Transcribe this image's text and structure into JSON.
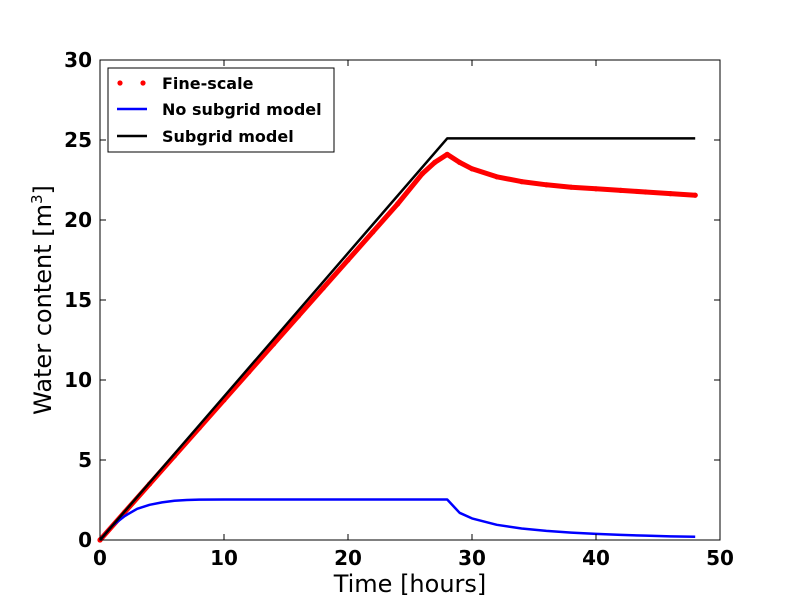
{
  "chart_data": {
    "type": "line",
    "xlabel": "Time [hours]",
    "ylabel_main": "Water content [m",
    "ylabel_sup": "3",
    "ylabel_close": "]",
    "xlim": [
      0,
      50
    ],
    "ylim": [
      0,
      30
    ],
    "xticks": [
      0,
      10,
      20,
      30,
      40,
      50
    ],
    "yticks": [
      0,
      5,
      10,
      15,
      20,
      25,
      30
    ],
    "xtick_labels": [
      "0",
      "10",
      "20",
      "30",
      "40",
      "50"
    ],
    "ytick_labels": [
      "0",
      "5",
      "10",
      "15",
      "20",
      "25",
      "30"
    ],
    "grid": false,
    "legend_position": "upper-left",
    "series": [
      {
        "name": "Fine-scale",
        "style": "dotted-markers",
        "color": "#ff0000",
        "x": [
          0,
          2,
          4,
          6,
          8,
          10,
          12,
          14,
          16,
          18,
          20,
          22,
          24,
          26,
          27,
          28,
          29,
          30,
          32,
          34,
          36,
          38,
          40,
          42,
          44,
          46,
          48
        ],
        "y": [
          0,
          1.75,
          3.5,
          5.25,
          7.0,
          8.75,
          10.5,
          12.25,
          14.0,
          15.75,
          17.5,
          19.25,
          21.0,
          22.9,
          23.6,
          24.1,
          23.6,
          23.2,
          22.7,
          22.4,
          22.2,
          22.05,
          21.95,
          21.85,
          21.75,
          21.65,
          21.55
        ]
      },
      {
        "name": "No subgrid model",
        "style": "solid",
        "color": "#0000ff",
        "x": [
          0,
          1,
          2,
          3,
          4,
          5,
          6,
          7,
          8,
          10,
          15,
          20,
          25,
          28,
          29,
          30,
          32,
          34,
          36,
          38,
          40,
          42,
          44,
          46,
          48
        ],
        "y": [
          0,
          0.9,
          1.5,
          1.95,
          2.2,
          2.35,
          2.45,
          2.5,
          2.52,
          2.53,
          2.53,
          2.53,
          2.53,
          2.53,
          1.7,
          1.35,
          0.95,
          0.72,
          0.57,
          0.46,
          0.38,
          0.32,
          0.27,
          0.23,
          0.2
        ]
      },
      {
        "name": "Subgrid model",
        "style": "solid",
        "color": "#000000",
        "x": [
          0,
          28,
          48
        ],
        "y": [
          0,
          25.1,
          25.1
        ]
      }
    ]
  }
}
